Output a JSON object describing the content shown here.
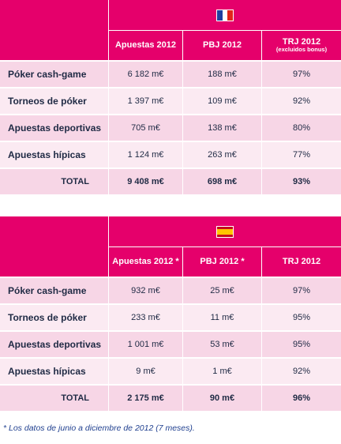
{
  "france": {
    "flag": "france-flag",
    "headers": [
      "Apuestas  2012",
      "PBJ 2012",
      "TRJ 2012"
    ],
    "headers_sub": [
      "",
      "",
      "(excluidos bonus)"
    ],
    "rows": [
      {
        "label": "Póker cash-game",
        "apuestas": "6 182 m€",
        "pbj": "188 m€",
        "trj": "97%"
      },
      {
        "label": "Torneos de póker",
        "apuestas": "1 397 m€",
        "pbj": "109 m€",
        "trj": "92%"
      },
      {
        "label": "Apuestas deportivas",
        "apuestas": "705 m€",
        "pbj": "138 m€",
        "trj": "80%"
      },
      {
        "label": "Apuestas hípicas",
        "apuestas": "1 124 m€",
        "pbj": "263 m€",
        "trj": "77%"
      }
    ],
    "total": {
      "label": "TOTAL",
      "apuestas": "9 408 m€",
      "pbj": "698 m€",
      "trj": "93%"
    }
  },
  "spain": {
    "flag": "spain-flag",
    "headers": [
      "Apuestas  2012 *",
      "PBJ 2012 *",
      "TRJ 2012"
    ],
    "rows": [
      {
        "label": "Póker cash-game",
        "apuestas": "932 m€",
        "pbj": "25 m€",
        "trj": "97%"
      },
      {
        "label": "Torneos de póker",
        "apuestas": "233 m€",
        "pbj": "11 m€",
        "trj": "95%"
      },
      {
        "label": "Apuestas deportivas",
        "apuestas": "1 001 m€",
        "pbj": "53 m€",
        "trj": "95%"
      },
      {
        "label": "Apuestas hípicas",
        "apuestas": "9 m€",
        "pbj": "1 m€",
        "trj": "92%"
      }
    ],
    "total": {
      "label": "TOTAL",
      "apuestas": "2 175 m€",
      "pbj": "90 m€",
      "trj": "96%"
    }
  },
  "colors": {
    "header_pink": "#e5006b",
    "row_dark": "#f7d6e6",
    "row_light": "#fbeaf2",
    "text_navy": "#1f2a44",
    "footnote_blue": "#1f3f8f"
  },
  "footnote": "* Los datos de junio a diciembre de 2012 (7 meses)."
}
